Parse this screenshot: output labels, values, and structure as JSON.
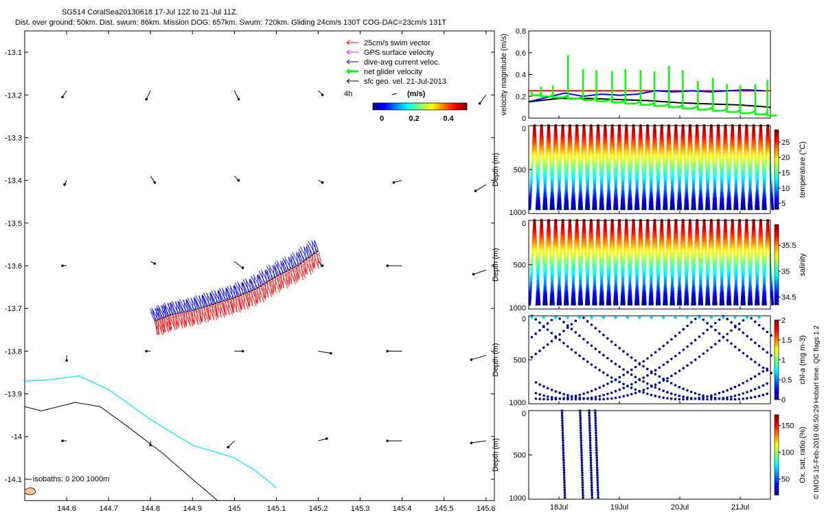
{
  "title_line1": "SG514 CoralSea20130618 17-Jul 12Z to 21-Jul 11Z.",
  "title_line2": "Dist. over ground: 50km. Dist. swum: 86km. Mission DOG: 657km. Swum: 720km. Gliding 24cm/s 130T COG-DAC=23cm/s 131T",
  "side_text": "© IMOS 15-Feb-2019 06:50:29 Hobart time. QC flags 1  2",
  "legend": [
    {
      "label": "25cm/s swim vector",
      "color": "#ff0000"
    },
    {
      "label": "GPS surface velocity",
      "color": "#ff00ff"
    },
    {
      "label": "dive-avg current veloc.",
      "color": "#0000ff"
    },
    {
      "label": "net glider velocity",
      "color": "#00ff00"
    },
    {
      "label": "sfc geo. vel. 21-Jul-2013",
      "color": "#000000"
    }
  ],
  "legend_scale": {
    "label": "4h",
    "unit": "(m/s)",
    "ticks": [
      "0",
      "0.2",
      "0.4"
    ]
  },
  "isobath_label": "isobaths: 0   200  1000m",
  "chart_data": [
    {
      "type": "map",
      "xlim": [
        144.5,
        145.62
      ],
      "ylim": [
        -14.15,
        -13.05
      ],
      "x_ticks": [
        "144.6",
        "144.7",
        "144.8",
        "144.9",
        "145",
        "145.1",
        "145.2",
        "145.3",
        "145.4",
        "145.5",
        "145.6"
      ],
      "y_ticks": [
        "-13.1",
        "-13.2",
        "-13.3",
        "-13.4",
        "-13.5",
        "-13.6",
        "-13.7",
        "-13.8",
        "-13.9",
        "-14",
        "-14.1"
      ],
      "track": [
        [
          144.81,
          -13.73
        ],
        [
          144.85,
          -13.715
        ],
        [
          144.9,
          -13.705
        ],
        [
          144.95,
          -13.69
        ],
        [
          145.0,
          -13.675
        ],
        [
          145.05,
          -13.655
        ],
        [
          145.1,
          -13.625
        ],
        [
          145.15,
          -13.6
        ],
        [
          145.2,
          -13.565
        ]
      ],
      "isobath_200m": [
        [
          144.5,
          -13.87
        ],
        [
          144.55,
          -13.868
        ],
        [
          144.63,
          -13.858
        ],
        [
          144.7,
          -13.89
        ],
        [
          144.8,
          -13.96
        ],
        [
          144.9,
          -14.02
        ],
        [
          145.0,
          -14.05
        ],
        [
          145.05,
          -14.08
        ],
        [
          145.1,
          -14.12
        ]
      ],
      "isobath_1000m": [
        [
          144.5,
          -13.93
        ],
        [
          144.54,
          -13.94
        ],
        [
          144.62,
          -13.92
        ],
        [
          144.68,
          -13.93
        ],
        [
          144.75,
          -13.98
        ],
        [
          144.83,
          -14.04
        ],
        [
          144.9,
          -14.1
        ],
        [
          144.96,
          -14.15
        ]
      ],
      "current_vectors": [
        [
          144.6,
          -13.19,
          -0.01,
          -0.015
        ],
        [
          144.8,
          -13.19,
          -0.01,
          -0.02
        ],
        [
          145.0,
          -13.19,
          0.01,
          -0.02
        ],
        [
          145.2,
          -13.19,
          0.01,
          -0.01
        ],
        [
          145.6,
          -13.2,
          -0.015,
          -0.02
        ],
        [
          144.6,
          -13.4,
          -0.005,
          -0.01
        ],
        [
          144.8,
          -13.39,
          0.01,
          -0.015
        ],
        [
          145.0,
          -13.39,
          0.01,
          -0.01
        ],
        [
          145.2,
          -13.4,
          0.01,
          -0.005
        ],
        [
          145.4,
          -13.4,
          -0.02,
          -0.005
        ],
        [
          145.6,
          -13.41,
          -0.025,
          -0.015
        ],
        [
          144.6,
          -13.6,
          -0.01,
          0.0
        ],
        [
          144.8,
          -13.59,
          0.01,
          -0.005
        ],
        [
          145.0,
          -13.59,
          0.02,
          -0.015
        ],
        [
          145.2,
          -13.59,
          0.01,
          -0.01
        ],
        [
          145.4,
          -13.6,
          -0.035,
          0.0
        ],
        [
          145.6,
          -13.61,
          -0.03,
          -0.01
        ],
        [
          144.6,
          -13.81,
          0.0,
          -0.012
        ],
        [
          144.8,
          -13.8,
          -0.01,
          0.0
        ],
        [
          145.0,
          -13.8,
          0.02,
          0.0
        ],
        [
          145.2,
          -13.8,
          0.03,
          -0.005
        ],
        [
          145.4,
          -13.8,
          -0.035,
          0.0
        ],
        [
          145.6,
          -13.81,
          -0.035,
          -0.01
        ],
        [
          144.6,
          -14.01,
          -0.01,
          0.0
        ],
        [
          144.8,
          -14.01,
          0.0,
          -0.01
        ],
        [
          145.0,
          -14.01,
          -0.015,
          -0.015
        ],
        [
          145.2,
          -14.01,
          0.02,
          0.005
        ],
        [
          145.4,
          -14.01,
          -0.035,
          0.0
        ],
        [
          145.6,
          -14.01,
          -0.035,
          -0.005
        ]
      ]
    },
    {
      "type": "line",
      "ylabel": "velocity magnitude (m/s)",
      "ylim": [
        0,
        0.8
      ],
      "y_ticks": [
        "0",
        "0.2",
        "0.4",
        "0.6",
        "0.8"
      ],
      "xlim": [
        17.5,
        21.5
      ],
      "series": [
        {
          "name": "swim",
          "color": "#ff0000",
          "x": [
            17.5,
            21.5
          ],
          "y": [
            0.25,
            0.25
          ]
        },
        {
          "name": "dive-avg current",
          "color": "#0000ff",
          "x": [
            17.5,
            17.8,
            18.1,
            18.4,
            18.7,
            19.0,
            19.3,
            19.6,
            19.9,
            20.2,
            20.5,
            20.8,
            21.1,
            21.4
          ],
          "y": [
            0.15,
            0.19,
            0.23,
            0.2,
            0.22,
            0.21,
            0.22,
            0.25,
            0.24,
            0.25,
            0.24,
            0.25,
            0.26,
            0.25
          ]
        },
        {
          "name": "sfc geo",
          "color": "#000000",
          "x": [
            17.5,
            18.0,
            18.5,
            19.0,
            19.5,
            20.0,
            20.5,
            21.0,
            21.5
          ],
          "y": [
            0.15,
            0.18,
            0.18,
            0.17,
            0.16,
            0.14,
            0.13,
            0.12,
            0.1
          ]
        },
        {
          "name": "net glider",
          "color": "#00ff00",
          "x": [
            17.55,
            17.7,
            17.9,
            18.15,
            18.4,
            18.62,
            18.88,
            19.1,
            19.35,
            19.58,
            19.82,
            20.05,
            20.3,
            20.55,
            20.78,
            21.0,
            21.25,
            21.45
          ],
          "y": [
            0.25,
            0.29,
            0.3,
            0.58,
            0.45,
            0.44,
            0.43,
            0.45,
            0.44,
            0.43,
            0.48,
            0.44,
            0.34,
            0.37,
            0.31,
            0.3,
            0.31,
            0.35
          ]
        }
      ]
    },
    {
      "type": "scatter",
      "ylabel": "Depth (m)",
      "clabel": "temperature (°C)",
      "ylim": [
        0,
        1000
      ],
      "y_ticks": [
        "0",
        "500",
        "1000"
      ],
      "c_ticks": [
        "5",
        "10",
        "15",
        "20",
        "25"
      ],
      "clim": [
        3,
        29
      ]
    },
    {
      "type": "scatter",
      "ylabel": "Depth (m)",
      "clabel": "salinity",
      "ylim": [
        0,
        1000
      ],
      "y_ticks": [
        "0",
        "500",
        "1000"
      ],
      "c_ticks": [
        "34.5",
        "35",
        "35.5"
      ],
      "clim": [
        34.35,
        35.9
      ]
    },
    {
      "type": "scatter",
      "ylabel": "Depth (m)",
      "clabel": "chl-a (mg m-3)",
      "ylim": [
        0,
        1000
      ],
      "y_ticks": [
        "0",
        "500",
        "1000"
      ],
      "c_ticks": [
        "0",
        "0.5",
        "1",
        "1.5",
        "2"
      ],
      "clim": [
        0,
        2
      ]
    },
    {
      "type": "scatter",
      "ylabel": "Depth (m)",
      "clabel": "Ox. sat. ratio (%)",
      "ylim": [
        0,
        1000
      ],
      "y_ticks": [
        "0",
        "500",
        "1000"
      ],
      "c_ticks": [
        "50",
        "100",
        "150"
      ],
      "clim": [
        20,
        170
      ],
      "x_ticks": [
        "18Jul",
        "19Jul",
        "20Jul",
        "21Jul"
      ]
    }
  ]
}
